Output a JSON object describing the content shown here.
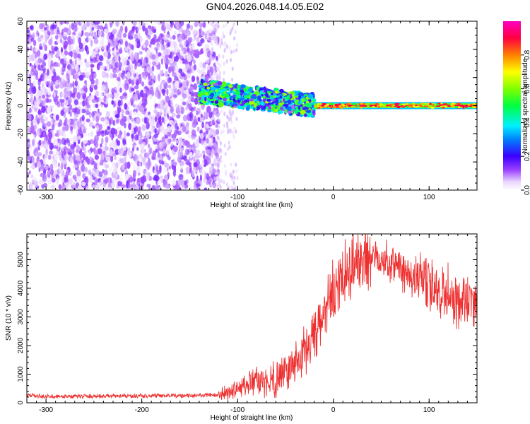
{
  "title": "GN04.2026.048.14.05.E02",
  "chart_data": [
    {
      "type": "heatmap",
      "xlabel": "Height of straight line (km)",
      "ylabel": "Frequency (Hz)",
      "xlim": [
        -320,
        150
      ],
      "ylim": [
        -60,
        60
      ],
      "xticks": [
        -300,
        -200,
        -100,
        0,
        100
      ],
      "yticks": [
        -60,
        -40,
        -20,
        0,
        20,
        40,
        60
      ],
      "colorbar": {
        "label": "Normalized spectral amplitude",
        "range": [
          0,
          1
        ],
        "ticks": [
          0.0,
          0.2,
          0.4,
          0.6,
          0.8
        ],
        "tick_labels": [
          "0.0",
          "0.2",
          "0.4",
          "0.6",
          "0.8"
        ]
      },
      "features": [
        {
          "x_range": [
            -320,
            -130
          ],
          "freq_range": [
            -60,
            60
          ],
          "amplitude_level": 0.1,
          "description": "broadband noise"
        },
        {
          "x_range": [
            -140,
            -20
          ],
          "freq_center_start": 10,
          "freq_center_end": 0,
          "amplitude_level": 0.45
        },
        {
          "x_range": [
            -20,
            150
          ],
          "freq_center": 0,
          "amplitude_level": 0.9
        }
      ]
    },
    {
      "type": "line",
      "xlabel": "Height of straight line (km)",
      "ylabel": "SNR (10 * v/v)",
      "xlim": [
        -320,
        150
      ],
      "ylim": [
        0,
        5900
      ],
      "xticks": [
        -300,
        -200,
        -100,
        0,
        100
      ],
      "yticks": [
        0,
        1000,
        2000,
        3000,
        4000,
        5000
      ],
      "color": "#ee3030",
      "series": [
        {
          "x": [
            -320,
            -300,
            -250,
            -200,
            -150,
            -120,
            -110,
            -100,
            -90,
            -80,
            -70,
            -60,
            -50,
            -40,
            -30,
            -20,
            -10,
            0,
            10,
            20,
            30,
            40,
            50,
            60,
            70,
            80,
            90,
            100,
            110,
            120,
            130,
            140,
            150
          ],
          "values": [
            250,
            220,
            230,
            240,
            250,
            280,
            350,
            500,
            650,
            700,
            750,
            850,
            1100,
            1400,
            1800,
            2300,
            3000,
            3800,
            4300,
            4800,
            5050,
            5150,
            5050,
            4900,
            4700,
            4500,
            4300,
            4100,
            3950,
            3800,
            3600,
            3500,
            3400
          ]
        }
      ]
    }
  ]
}
